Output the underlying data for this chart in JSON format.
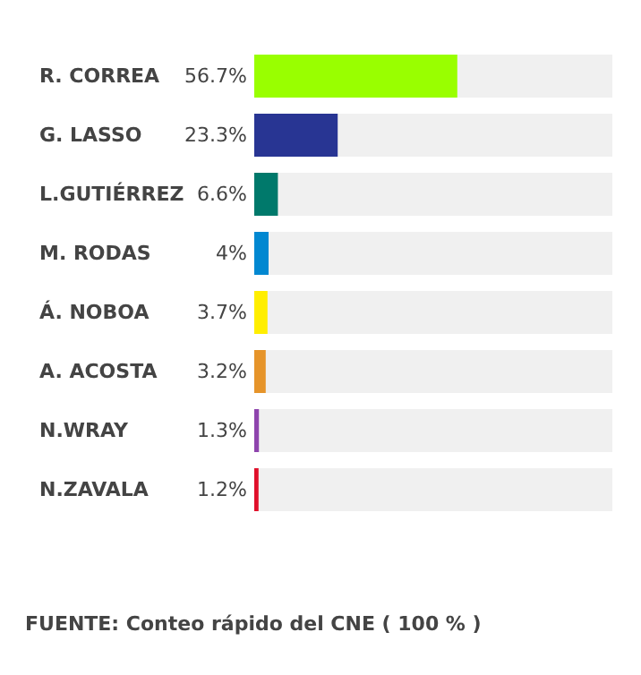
{
  "chart_data": {
    "type": "bar",
    "orientation": "horizontal",
    "categories": [
      "R. CORREA",
      "G. LASSO",
      "L.GUTIÉRREZ",
      "M. RODAS",
      "Á. NOBOA",
      "A. ACOSTA",
      "N.WRAY",
      "N.ZAVALA"
    ],
    "values": [
      56.7,
      23.3,
      6.6,
      4,
      3.7,
      3.2,
      1.3,
      1.2
    ],
    "colors": [
      "#99ff00",
      "#283593",
      "#00796b",
      "#0288d1",
      "#ffee00",
      "#e6942a",
      "#8e44ad",
      "#e0102a"
    ],
    "value_labels": [
      "56.7%",
      "23.3%",
      "6.6%",
      "4%",
      "3.7%",
      "3.2%",
      "1.3%",
      "1.2%"
    ],
    "xlim": [
      0,
      100
    ],
    "annotations": [
      "FUENTE: Conteo rápido del CNE ( 100 % )"
    ]
  }
}
